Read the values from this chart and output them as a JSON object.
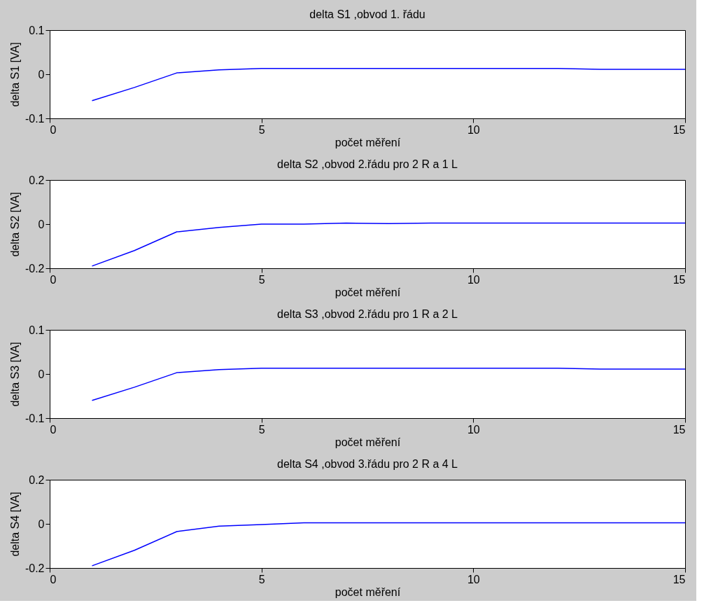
{
  "chart_data": [
    {
      "type": "line",
      "title": "delta S1 ,obvod 1. řádu",
      "xlabel": "počet měření",
      "ylabel": "delta S1 [VA]",
      "x": [
        1,
        2,
        3,
        4,
        5,
        6,
        7,
        8,
        9,
        10,
        11,
        12,
        13,
        14,
        15
      ],
      "series": [
        {
          "color": "#0000ff",
          "values": [
            -0.06,
            -0.03,
            0.003,
            0.01,
            0.013,
            0.013,
            0.013,
            0.013,
            0.013,
            0.013,
            0.013,
            0.013,
            0.011,
            0.011,
            0.011
          ]
        }
      ],
      "xlim": [
        0,
        15
      ],
      "xticks": [
        0,
        5,
        10,
        15
      ],
      "ylim": [
        -0.1,
        0.1
      ],
      "yticks": [
        -0.1,
        0,
        0.1
      ],
      "grid": false
    },
    {
      "type": "line",
      "title": "delta S2 ,obvod 2.řádu pro 2 R a 1 L",
      "xlabel": "počet měření",
      "ylabel": "delta S2 [VA]",
      "x": [
        1,
        2,
        3,
        4,
        5,
        6,
        7,
        8,
        9,
        10,
        11,
        12,
        13,
        14,
        15
      ],
      "series": [
        {
          "color": "#0000ff",
          "values": [
            -0.19,
            -0.12,
            -0.035,
            -0.015,
            0,
            0,
            0.005,
            0.002,
            0.005,
            0.005,
            0.005,
            0.005,
            0.005,
            0.005,
            0.005
          ]
        }
      ],
      "xlim": [
        0,
        15
      ],
      "xticks": [
        0,
        5,
        10,
        15
      ],
      "ylim": [
        -0.2,
        0.2
      ],
      "yticks": [
        -0.2,
        0,
        0.2
      ],
      "grid": false
    },
    {
      "type": "line",
      "title": "delta S3 ,obvod 2.řádu pro 1 R a 2 L",
      "xlabel": "počet měření",
      "ylabel": "delta S3 [VA]",
      "x": [
        1,
        2,
        3,
        4,
        5,
        6,
        7,
        8,
        9,
        10,
        11,
        12,
        13,
        14,
        15
      ],
      "series": [
        {
          "color": "#0000ff",
          "values": [
            -0.06,
            -0.03,
            0.003,
            0.01,
            0.013,
            0.013,
            0.013,
            0.013,
            0.013,
            0.013,
            0.013,
            0.013,
            0.011,
            0.011,
            0.011
          ]
        }
      ],
      "xlim": [
        0,
        15
      ],
      "xticks": [
        0,
        5,
        10,
        15
      ],
      "ylim": [
        -0.1,
        0.1
      ],
      "yticks": [
        -0.1,
        0,
        0.1
      ],
      "grid": false
    },
    {
      "type": "line",
      "title": "delta S4 ,obvod 3.řádu pro 2 R a 4 L",
      "xlabel": "počet měření",
      "ylabel": "delta S4 [VA]",
      "x": [
        1,
        2,
        3,
        4,
        5,
        6,
        7,
        8,
        9,
        10,
        11,
        12,
        13,
        14,
        15
      ],
      "series": [
        {
          "color": "#0000ff",
          "values": [
            -0.19,
            -0.12,
            -0.035,
            -0.01,
            -0.003,
            0.005,
            0.005,
            0.005,
            0.005,
            0.005,
            0.005,
            0.005,
            0.005,
            0.005,
            0.005
          ]
        }
      ],
      "xlim": [
        0,
        15
      ],
      "xticks": [
        0,
        5,
        10,
        15
      ],
      "ylim": [
        -0.2,
        0.2
      ],
      "yticks": [
        -0.2,
        0,
        0.2
      ],
      "grid": false
    }
  ]
}
